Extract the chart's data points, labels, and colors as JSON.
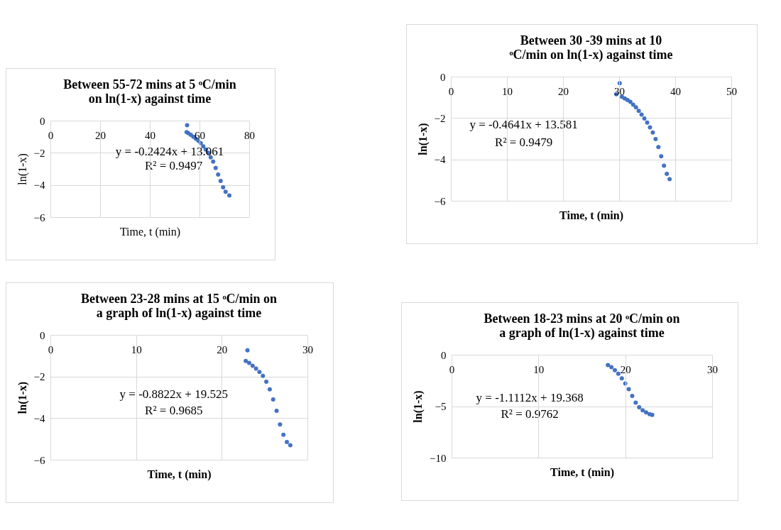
{
  "chart_data": [
    {
      "type": "scatter",
      "title": "Between 55-72 mins at 5 ᵒC/min on ln(1-x) against time",
      "xlabel": "Time, t (min)",
      "ylabel": "ln(1-x)",
      "xlim": [
        0,
        80
      ],
      "xticks": [
        0,
        20,
        40,
        60,
        80
      ],
      "ylim": [
        -6,
        0
      ],
      "yticks": [
        -6,
        -4,
        -2,
        0
      ],
      "grid": true,
      "marker": "circle",
      "annotations": [
        "y = -0.2424x + 13.061",
        "R² = 0.9497"
      ],
      "series": [
        {
          "color": "#4472c4",
          "x": [
            55,
            54.8,
            55.5,
            56.5,
            57.5,
            58.5,
            59.5,
            60.5,
            61.5,
            62.5,
            63.5,
            64.5,
            65.5,
            66.5,
            67.5,
            68.5,
            69.5,
            70.5,
            72
          ],
          "values": [
            -0.29,
            -0.72,
            -0.78,
            -0.88,
            -1.0,
            -1.12,
            -1.25,
            -1.4,
            -1.6,
            -1.8,
            -2.0,
            -2.28,
            -2.55,
            -2.95,
            -3.35,
            -3.75,
            -4.15,
            -4.42,
            -4.65
          ]
        }
      ]
    },
    {
      "type": "scatter",
      "title": "Between 30 -39 mins at 10 ᵒC/min on ln(1-x) against time",
      "xlabel": "Time, t (min)",
      "ylabel": "ln(1-x)",
      "xlim": [
        0,
        50
      ],
      "xticks": [
        0,
        10,
        20,
        30,
        40,
        50
      ],
      "ylim": [
        -6,
        0
      ],
      "yticks": [
        -6,
        -4,
        -2,
        0
      ],
      "grid": true,
      "marker": "circle",
      "annotations": [
        "y = -0.4641x + 13.581",
        "R² = 0.9479"
      ],
      "series": [
        {
          "color": "#4472c4",
          "x": [
            30.1,
            29.5,
            30.5,
            31,
            31.5,
            32,
            32.5,
            33,
            33.5,
            34,
            34.5,
            35,
            35.5,
            36,
            36.5,
            37,
            37.5,
            38,
            38.5,
            39
          ],
          "values": [
            -0.32,
            -0.85,
            -0.98,
            -1.05,
            -1.13,
            -1.22,
            -1.35,
            -1.48,
            -1.65,
            -1.83,
            -2.02,
            -2.22,
            -2.45,
            -2.7,
            -3.02,
            -3.4,
            -3.85,
            -4.3,
            -4.7,
            -4.95
          ]
        }
      ]
    },
    {
      "type": "scatter",
      "title": "Between 23-28 mins at 15 ᵒC/min on a graph of ln(1-x) against time",
      "xlabel": "Time, t (min)",
      "ylabel": "ln(1-x)",
      "xlim": [
        0,
        30
      ],
      "xticks": [
        0,
        10,
        20,
        30
      ],
      "ylim": [
        -6,
        0
      ],
      "yticks": [
        -6,
        -4,
        -2,
        0
      ],
      "grid": true,
      "marker": "circle",
      "annotations": [
        "y = -0.8822x + 19.525",
        "R² = 0.9685"
      ],
      "series": [
        {
          "color": "#4472c4",
          "x": [
            23,
            22.8,
            23.2,
            23.6,
            24,
            24.4,
            24.8,
            25.2,
            25.6,
            26,
            26.4,
            26.8,
            27.2,
            27.6,
            28
          ],
          "values": [
            -0.74,
            -1.25,
            -1.35,
            -1.48,
            -1.62,
            -1.78,
            -1.97,
            -2.25,
            -2.62,
            -3.1,
            -3.65,
            -4.3,
            -4.8,
            -5.15,
            -5.3
          ]
        }
      ]
    },
    {
      "type": "scatter",
      "title": "Between 18-23 mins at 20 ᵒC/min on a graph of ln(1-x) against time",
      "xlabel": "Time, t (min)",
      "ylabel": "ln(1-x)",
      "xlim": [
        0,
        30
      ],
      "xticks": [
        0,
        10,
        20,
        30
      ],
      "ylim": [
        -10,
        0
      ],
      "yticks": [
        -10,
        -5,
        0
      ],
      "grid": true,
      "marker": "circle",
      "annotations": [
        "y = -1.1112x + 19.368",
        "R² = 0.9762"
      ],
      "series": [
        {
          "color": "#4472c4",
          "x": [
            18,
            18.4,
            18.8,
            19.2,
            19.6,
            20,
            20.4,
            20.8,
            21.2,
            21.6,
            22,
            22.4,
            22.8,
            23.1
          ],
          "values": [
            -1.0,
            -1.2,
            -1.5,
            -1.85,
            -2.3,
            -2.8,
            -3.35,
            -4.0,
            -4.65,
            -5.1,
            -5.4,
            -5.6,
            -5.78,
            -5.85
          ]
        }
      ]
    }
  ]
}
